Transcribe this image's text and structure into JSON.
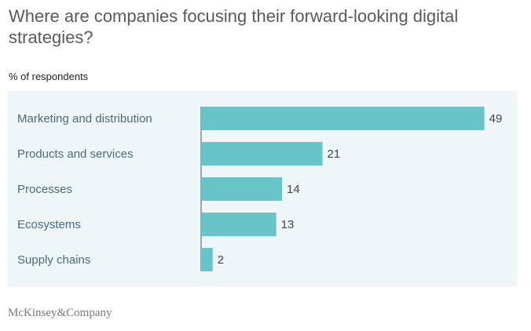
{
  "title": "Where are companies focusing their forward-looking digital strategies?",
  "subtitle": "% of respondents",
  "logo": "McKinsey&Company",
  "colors": {
    "bar": "#68c4c9",
    "category_label": "#4a6a7c",
    "value_label": "#444444",
    "panel": "#eef6f8",
    "axis": "#555555"
  },
  "chart_data": {
    "type": "bar",
    "orientation": "horizontal",
    "categories": [
      "Marketing and distribution",
      "Products and services",
      "Processes",
      "Ecosystems",
      "Supply chains"
    ],
    "values": [
      49,
      21,
      14,
      13,
      2
    ],
    "title": "Where are companies focusing their forward-looking digital strategies?",
    "ylabel": "% of respondents",
    "xlim": [
      0,
      50
    ],
    "grid": false,
    "legend": "none"
  }
}
